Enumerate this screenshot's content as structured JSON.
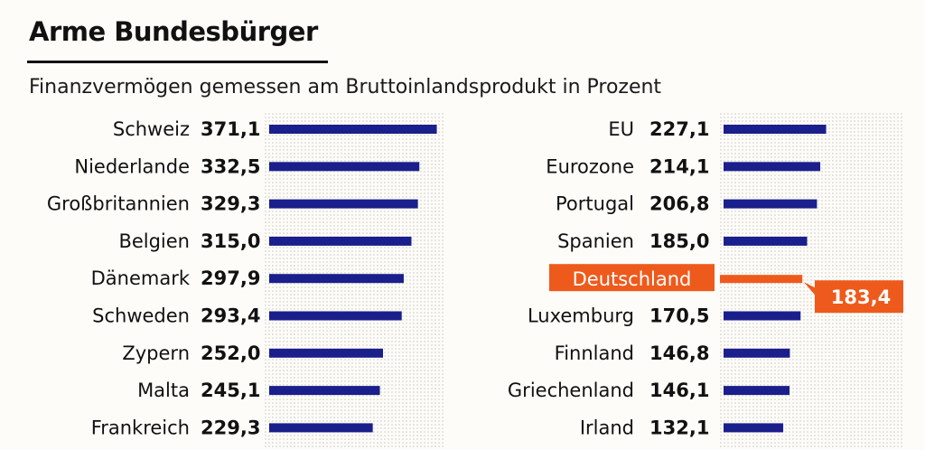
{
  "header": {
    "title": "Arme Bundesbürger",
    "subtitle": "Finanzvermögen gemessen am Bruttoinlandsprodukt in Prozent"
  },
  "colors": {
    "bar": "#1a1f8c",
    "highlight": "#ee5a1c",
    "highlight_text": "#ffffff",
    "text": "#111111"
  },
  "chart_data": {
    "type": "bar",
    "orientation": "horizontal",
    "title": "Arme Bundesbürger",
    "subtitle": "Finanzvermögen gemessen am Bruttoinlandsprodukt in Prozent",
    "xlabel": "",
    "ylabel": "",
    "highlight": "Deutschland",
    "columns": [
      {
        "categories": [
          "Schweiz",
          "Niederlande",
          "Großbritannien",
          "Belgien",
          "Dänemark",
          "Schweden",
          "Zypern",
          "Malta",
          "Frankreich"
        ],
        "values": [
          371.1,
          332.5,
          329.3,
          315.0,
          297.9,
          293.4,
          252.0,
          245.1,
          229.3
        ],
        "labels": [
          "371,1",
          "332,5",
          "329,3",
          "315,0",
          "297,9",
          "293,4",
          "252,0",
          "245,1",
          "229,3"
        ]
      },
      {
        "categories": [
          "EU",
          "Eurozone",
          "Portugal",
          "Spanien",
          "Deutschland",
          "Luxemburg",
          "Finnland",
          "Griechenland",
          "Irland"
        ],
        "values": [
          227.1,
          214.1,
          206.8,
          185.0,
          183.4,
          170.5,
          146.8,
          146.1,
          132.1
        ],
        "labels": [
          "227,1",
          "214,1",
          "206,8",
          "185,0",
          "183,4",
          "170,5",
          "146,8",
          "146,1",
          "132,1"
        ]
      }
    ]
  }
}
